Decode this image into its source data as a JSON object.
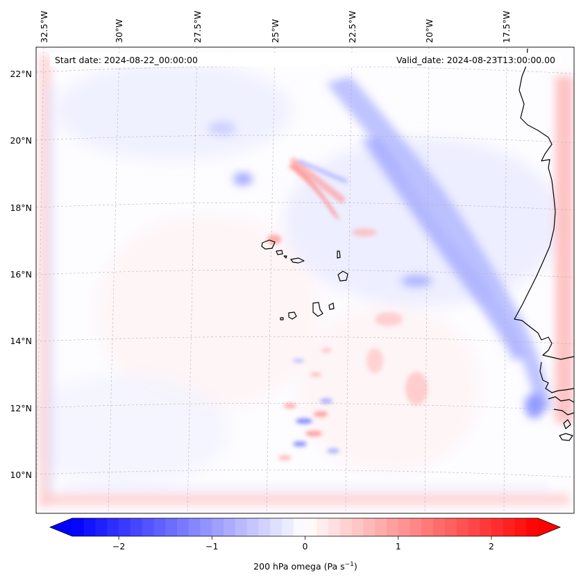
{
  "map": {
    "start_label": "Start date: 2024-08-22_00:00:00",
    "valid_label": "Valid_date: 2024-08-23T13:00:00.00",
    "lon_labels": [
      "32.5°W",
      "30°W",
      "27.5°W",
      "25°W",
      "22.5°W",
      "20°W",
      "17.5°W"
    ],
    "lat_labels": [
      "22°N",
      "20°N",
      "18°N",
      "16°N",
      "14°N",
      "12°N",
      "10°N"
    ],
    "colors": {
      "coastline": "#000000",
      "gridline": "#b4b4b4",
      "positive": "#ff0000",
      "negative": "#0000ff",
      "neutral": "#ffffff"
    }
  },
  "colorbar": {
    "variable": "200 hPa omega",
    "units_base": "Pa s",
    "units_exp": "−1",
    "ticks": [
      "−2",
      "−1",
      "0",
      "1",
      "2"
    ],
    "tick_values": [
      -2,
      -1,
      0,
      1,
      2
    ],
    "vmin": -2.5,
    "vmax": 2.5,
    "levels": 40
  }
}
